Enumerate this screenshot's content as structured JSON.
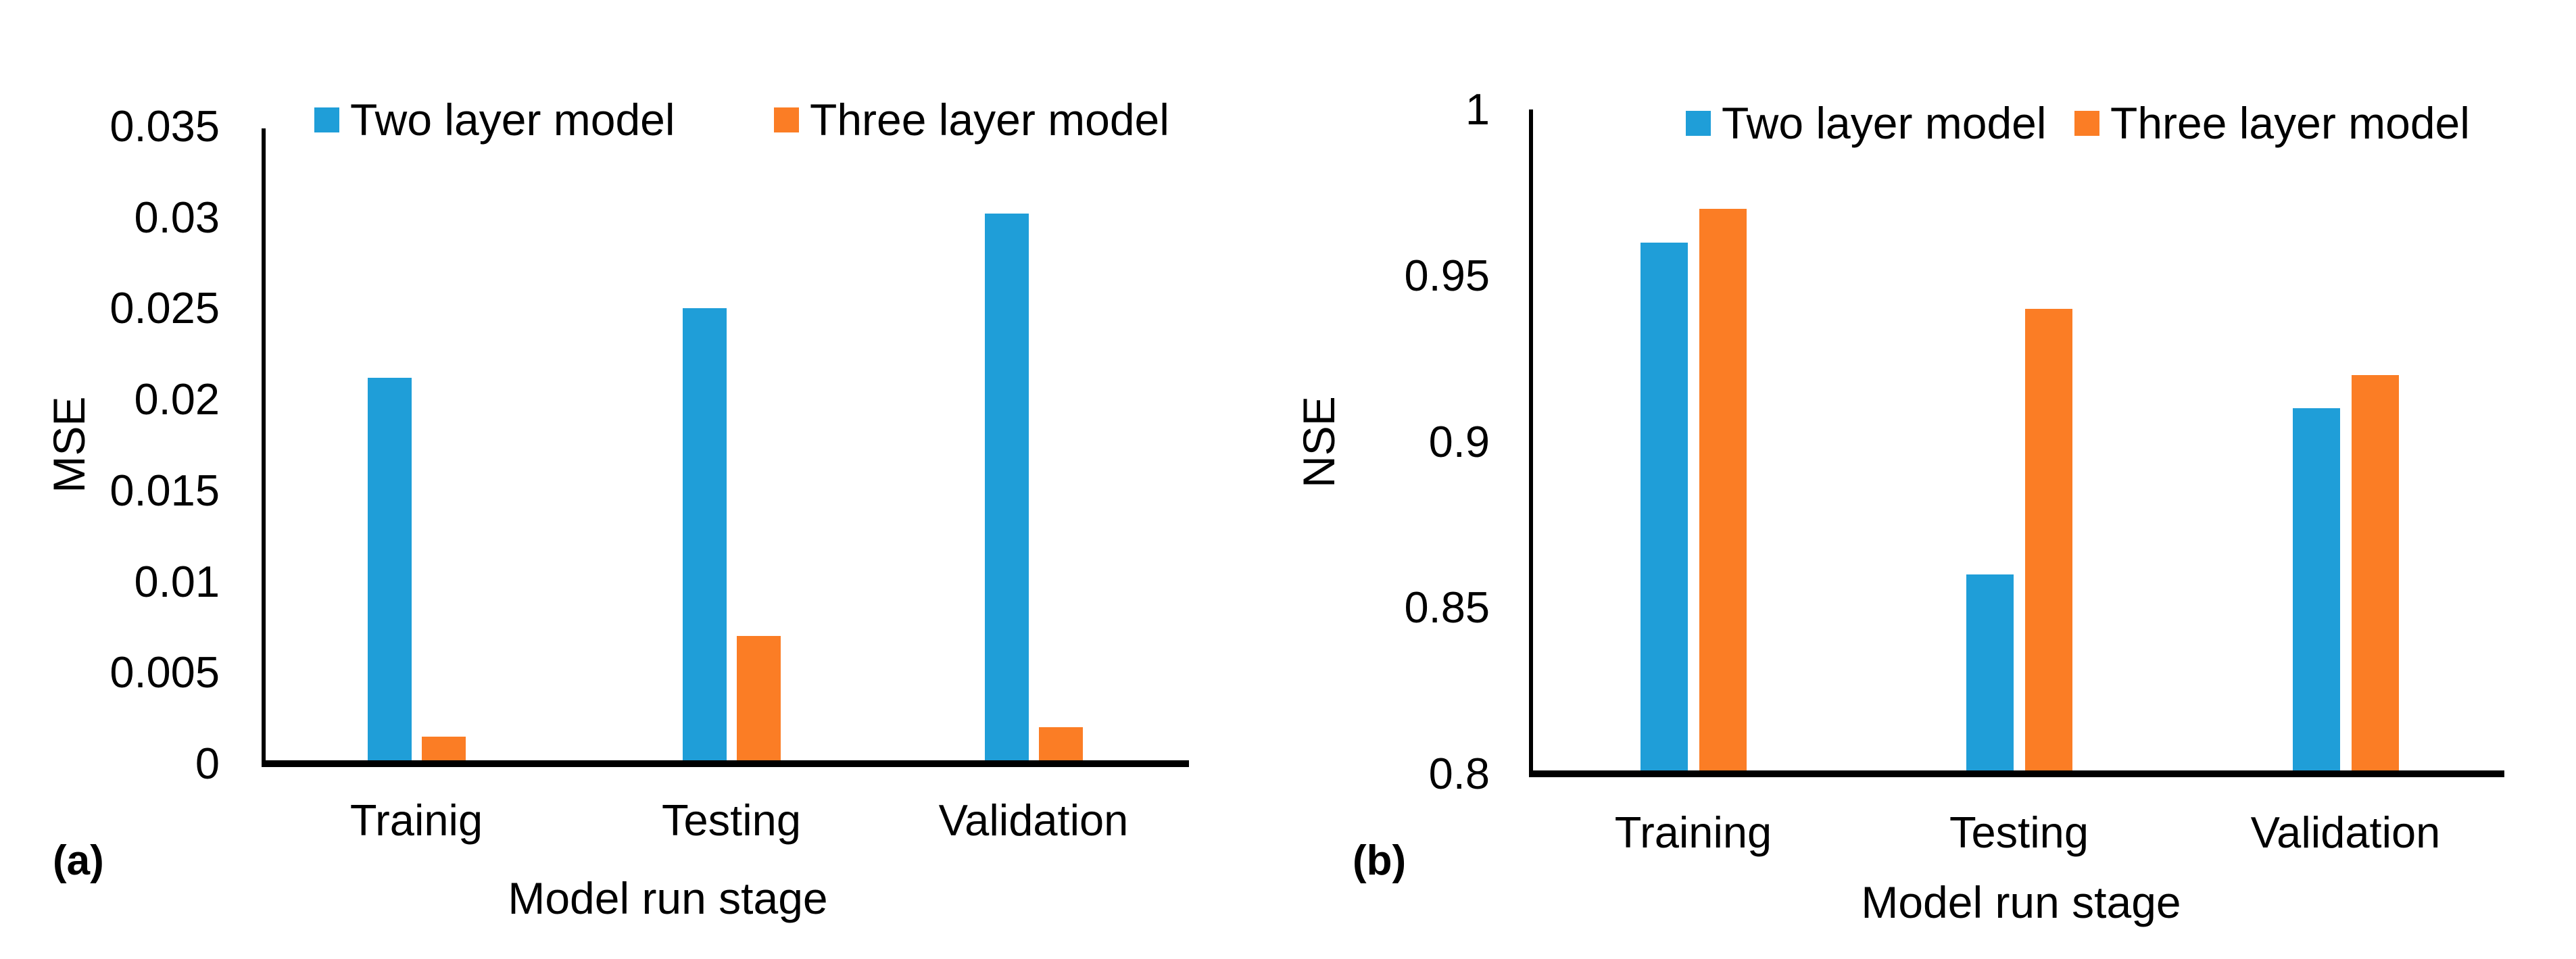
{
  "figure": {
    "background": "#ffffff",
    "axis_color": "#000000",
    "text_color": "#000000"
  },
  "chart_data": [
    {
      "type": "bar",
      "panel_label": "(a)",
      "title": "",
      "ylabel": "MSE",
      "xlabel": "Model run stage",
      "categories": [
        "Trainig",
        "Testing",
        "Validation"
      ],
      "series": [
        {
          "name": "Two layer model",
          "color": "#1f9ed8",
          "values": [
            0.0212,
            0.025,
            0.0302
          ]
        },
        {
          "name": "Three layer model",
          "color": "#fb7d25",
          "values": [
            0.0015,
            0.007,
            0.002
          ]
        }
      ],
      "ylim": [
        0,
        0.035
      ],
      "yticks": [
        0.035,
        0.03,
        0.025,
        0.02,
        0.015,
        0.01,
        0.005,
        0
      ],
      "ytick_labels": [
        "0.035",
        "0.03",
        "0.025",
        "0.02",
        "0.015",
        "0.01",
        "0.005",
        "0"
      ],
      "legend_position": "top",
      "grid": false
    },
    {
      "type": "bar",
      "panel_label": "(b)",
      "title": "",
      "ylabel": "NSE",
      "xlabel": "Model run stage",
      "categories": [
        "Training",
        "Testing",
        "Validation"
      ],
      "series": [
        {
          "name": "Two layer model",
          "color": "#1f9ed8",
          "values": [
            0.96,
            0.86,
            0.91
          ]
        },
        {
          "name": "Three layer model",
          "color": "#fb7d25",
          "values": [
            0.97,
            0.94,
            0.92
          ]
        }
      ],
      "ylim": [
        0.8,
        1.0
      ],
      "yticks": [
        1,
        0.95,
        0.9,
        0.85,
        0.8
      ],
      "ytick_labels": [
        "1",
        "0.95",
        "0.9",
        "0.85",
        "0.8"
      ],
      "legend_position": "top",
      "grid": false
    }
  ]
}
